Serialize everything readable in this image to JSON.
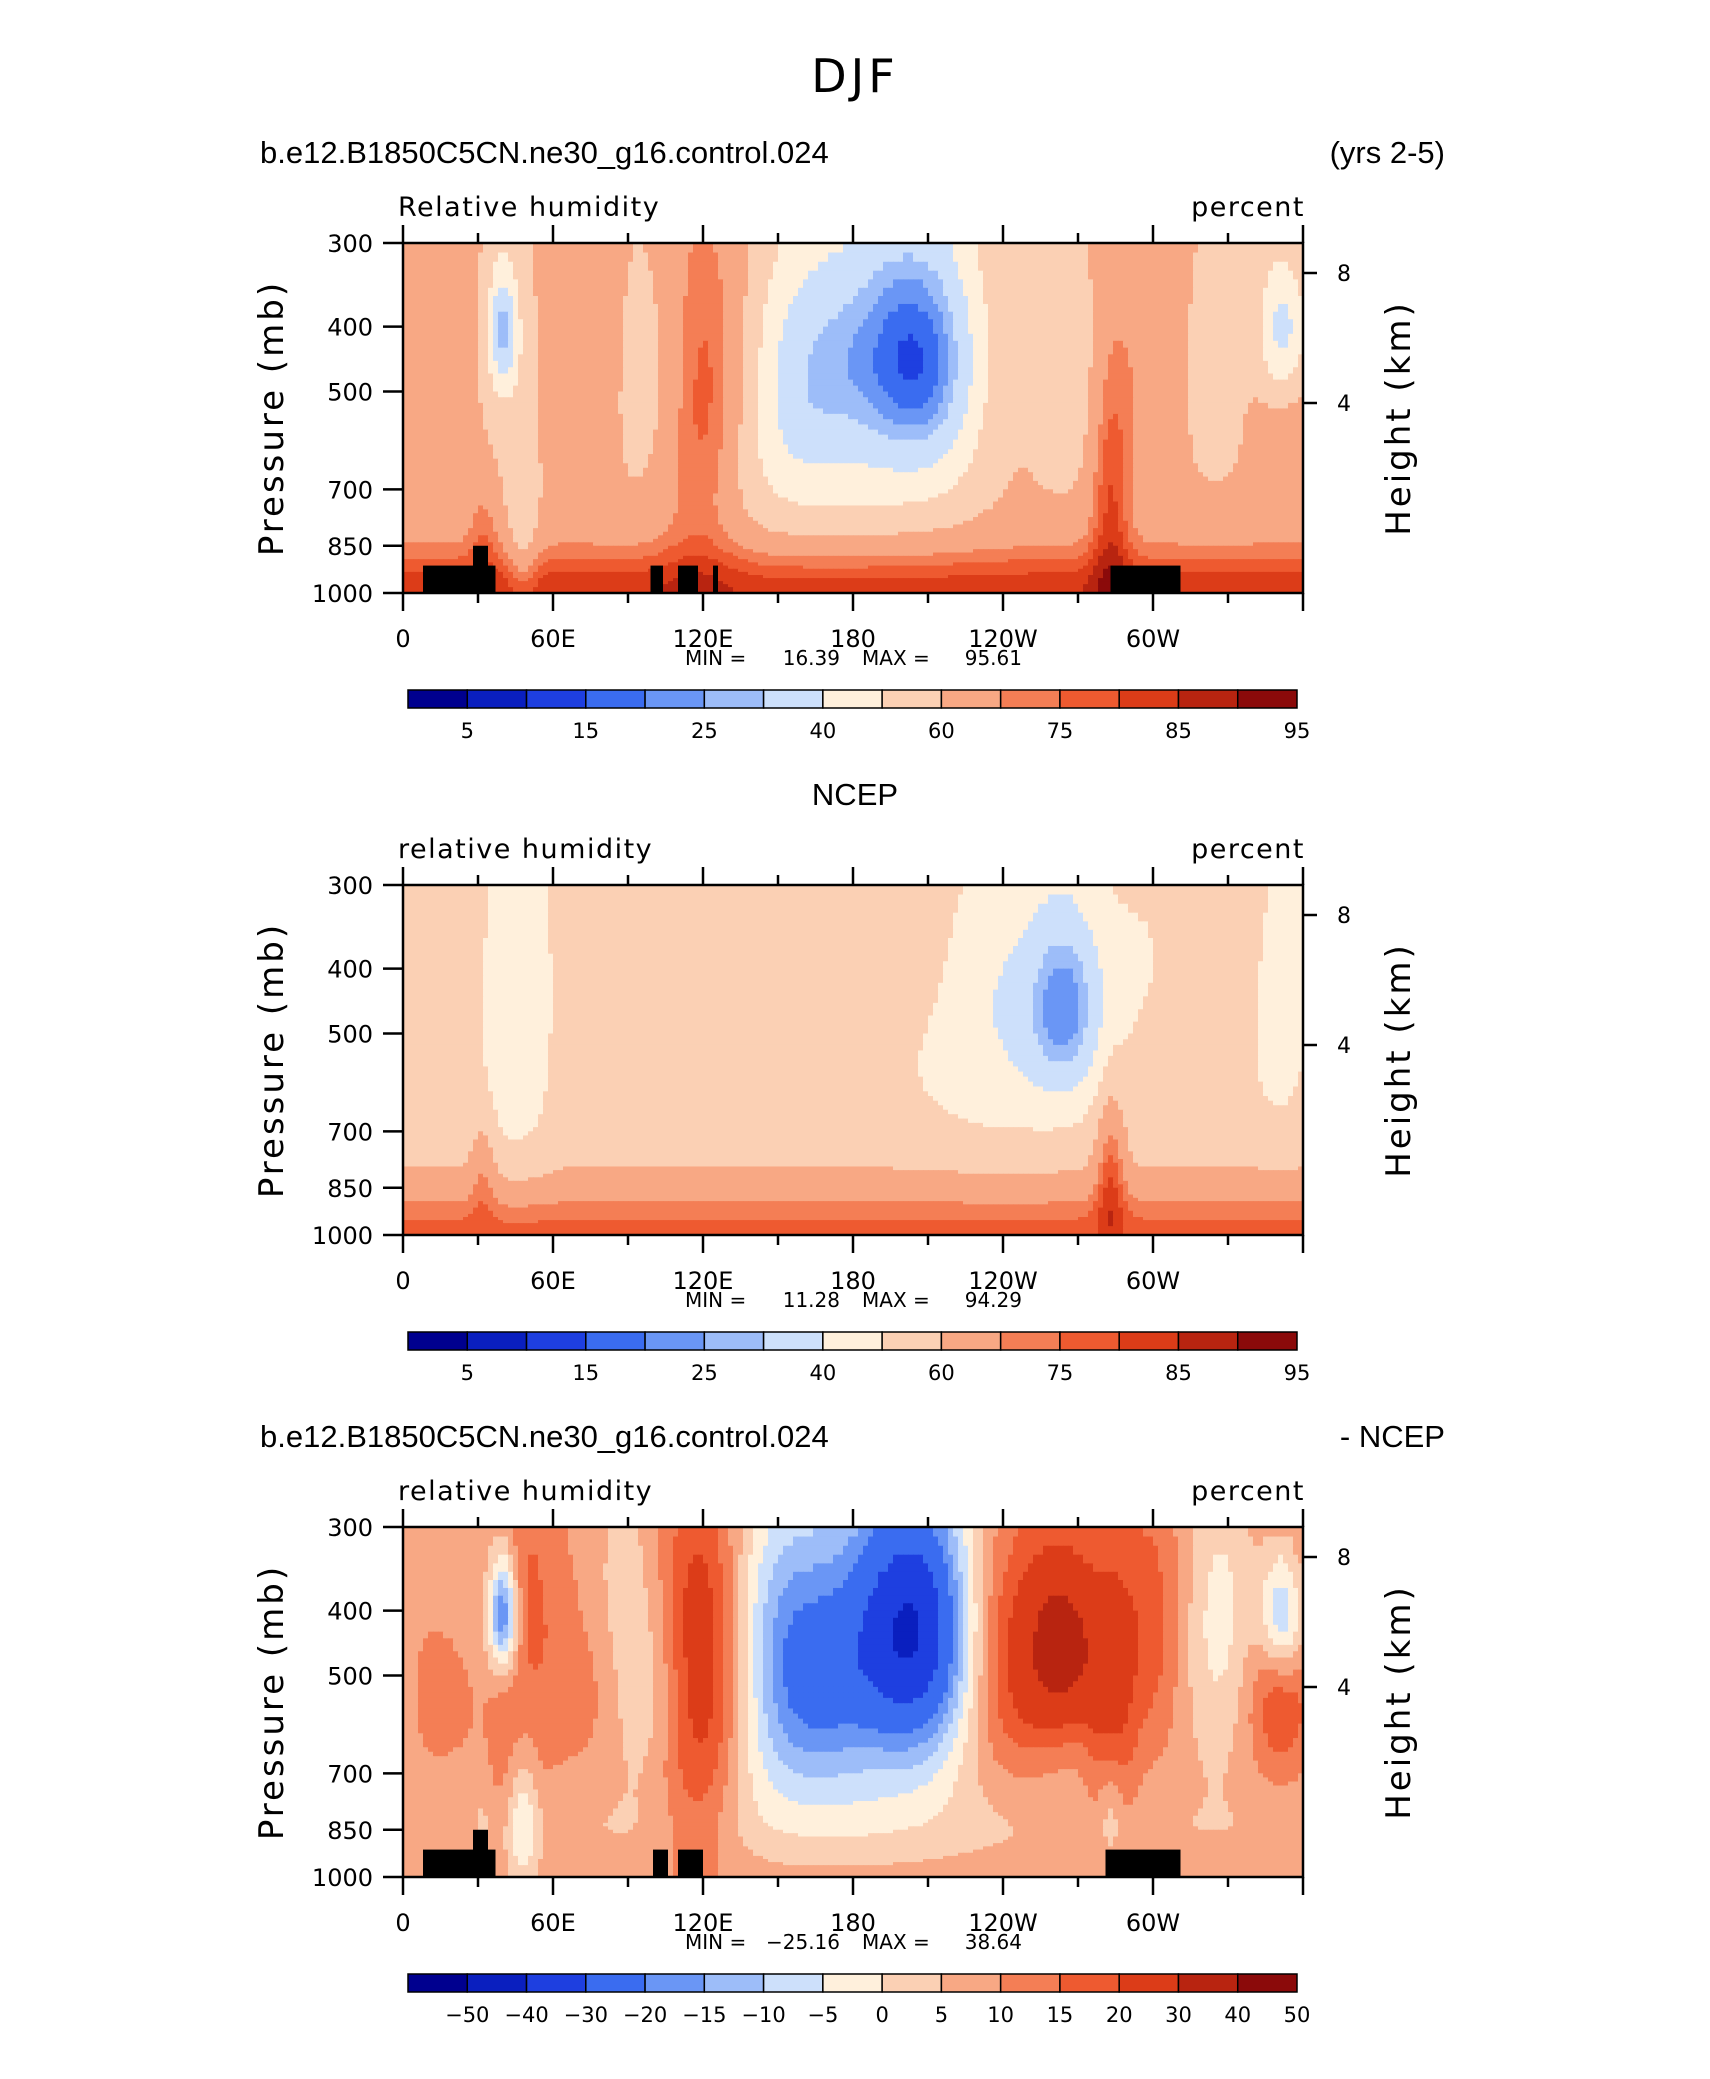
{
  "page_title": "DJF",
  "chart_data": [
    {
      "type": "heatmap",
      "panel_title_left": "b.e12.B1850C5CN.ne30_g16.control.024",
      "panel_title_right": "(yrs 2-5)",
      "variable": "Relative humidity",
      "units": "percent",
      "ylabel": "Pressure (mb)",
      "ylabel_right": "Height (km)",
      "x_ticks": [
        "0",
        "60E",
        "120E",
        "180",
        "120W",
        "60W"
      ],
      "y_ticks": [
        "300",
        "400",
        "500",
        "700",
        "850",
        "1000"
      ],
      "y_right_ticks": [
        "8",
        "4"
      ],
      "min_label": "MIN =",
      "min_value": "16.39",
      "max_label": "MAX =",
      "max_value": "95.61",
      "colorbar_labels": [
        "5",
        "15",
        "25",
        "40",
        "60",
        "75",
        "85",
        "95"
      ],
      "colorbar_colors": [
        "#00008f",
        "#0a1fbf",
        "#1e3fe0",
        "#3a6cf0",
        "#6a96f5",
        "#9dbdf9",
        "#cde0fb",
        "#fff0dc",
        "#fbd0b4",
        "#f8a884",
        "#f47e55",
        "#ee5a30",
        "#dc3c18",
        "#b82410",
        "#8b0a0a"
      ],
      "field": "model_rh"
    },
    {
      "type": "heatmap",
      "panel_title_center": "NCEP",
      "variable": "relative humidity",
      "units": "percent",
      "ylabel": "Pressure (mb)",
      "ylabel_right": "Height (km)",
      "x_ticks": [
        "0",
        "60E",
        "120E",
        "180",
        "120W",
        "60W"
      ],
      "y_ticks": [
        "300",
        "400",
        "500",
        "700",
        "850",
        "1000"
      ],
      "y_right_ticks": [
        "8",
        "4"
      ],
      "min_label": "MIN =",
      "min_value": "11.28",
      "max_label": "MAX =",
      "max_value": "94.29",
      "colorbar_labels": [
        "5",
        "15",
        "25",
        "40",
        "60",
        "75",
        "85",
        "95"
      ],
      "colorbar_colors": [
        "#00008f",
        "#0a1fbf",
        "#1e3fe0",
        "#3a6cf0",
        "#6a96f5",
        "#9dbdf9",
        "#cde0fb",
        "#fff0dc",
        "#fbd0b4",
        "#f8a884",
        "#f47e55",
        "#ee5a30",
        "#dc3c18",
        "#b82410",
        "#8b0a0a"
      ],
      "field": "ncep_rh"
    },
    {
      "type": "heatmap",
      "panel_title_left": "b.e12.B1850C5CN.ne30_g16.control.024",
      "panel_title_right": "- NCEP",
      "variable": "relative humidity",
      "units": "percent",
      "ylabel": "Pressure (mb)",
      "ylabel_right": "Height (km)",
      "x_ticks": [
        "0",
        "60E",
        "120E",
        "180",
        "120W",
        "60W"
      ],
      "y_ticks": [
        "300",
        "400",
        "500",
        "700",
        "850",
        "1000"
      ],
      "y_right_ticks": [
        "8",
        "4"
      ],
      "min_label": "MIN =",
      "min_value": "−25.16",
      "max_label": "MAX =",
      "max_value": "38.64",
      "colorbar_labels": [
        "−50",
        "−40",
        "−30",
        "−20",
        "−15",
        "−10",
        "−5",
        "0",
        "5",
        "10",
        "15",
        "20",
        "30",
        "40",
        "50"
      ],
      "colorbar_colors": [
        "#00008f",
        "#0a1fbf",
        "#1e3fe0",
        "#3a6cf0",
        "#6a96f5",
        "#9dbdf9",
        "#cde0fb",
        "#fff0dc",
        "#fbd0b4",
        "#f8a884",
        "#f47e55",
        "#ee5a30",
        "#dc3c18",
        "#b82410",
        "#8b0a0a"
      ],
      "field": "difference"
    }
  ]
}
